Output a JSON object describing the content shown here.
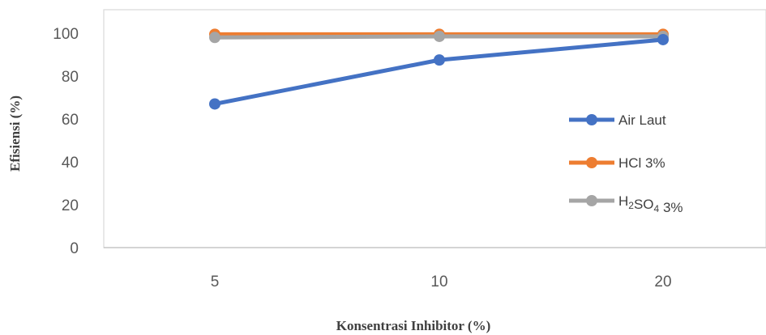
{
  "chart_data": {
    "type": "line",
    "categories": [
      "5",
      "10",
      "20"
    ],
    "series": [
      {
        "name": "Air Laut",
        "values": [
          67,
          87.5,
          97
        ],
        "color": "#4472C4"
      },
      {
        "name": "HCl 3%",
        "values": [
          99.5,
          99.5,
          99.5
        ],
        "color": "#ED7D31"
      },
      {
        "name": "H2SO4 3%",
        "values": [
          98,
          98.5,
          98.5
        ],
        "color": "#A5A5A5"
      }
    ],
    "xlabel": "Konsentrasi Inhibitor (%)",
    "ylabel": "Efisiensi (%)",
    "ylim": [
      0,
      100
    ],
    "yticks": [
      0,
      20,
      40,
      60,
      80,
      100
    ],
    "grid": false,
    "legend": "right"
  }
}
